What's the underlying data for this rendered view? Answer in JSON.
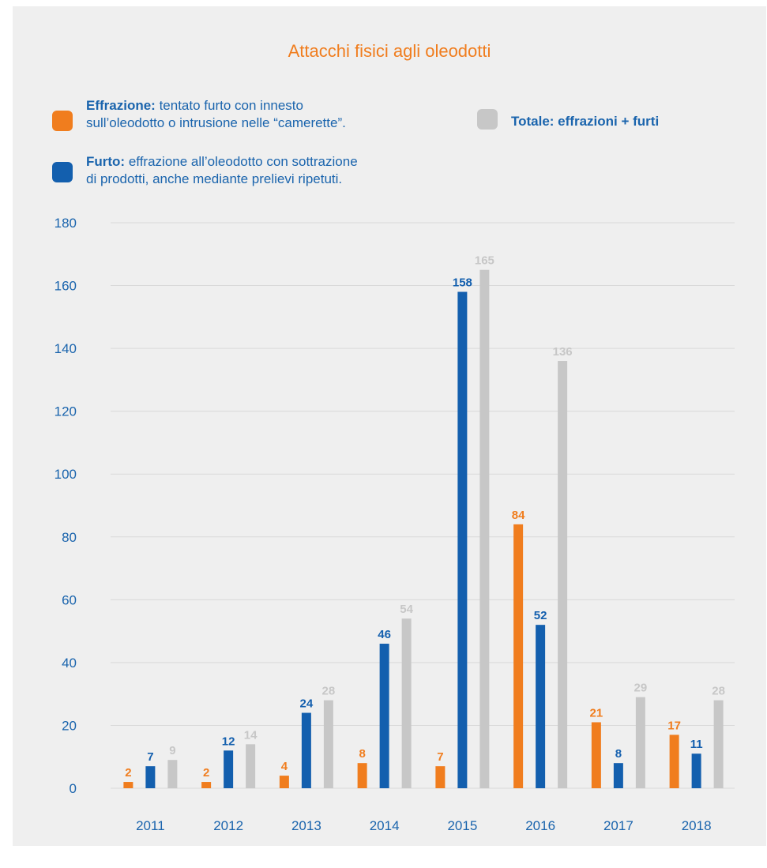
{
  "colors": {
    "effrazione": "#f07d1e",
    "furto": "#135fae",
    "totale": "#c7c7c7",
    "text_blue": "#1a64ad"
  },
  "legend": {
    "effrazione_term": "Effrazione:",
    "effrazione_line1": "tentato furto con innesto",
    "effrazione_line2": "sull’oleodotto o intrusione nelle “camerette”.",
    "furto_term": "Furto:",
    "furto_line1": "effrazione all’oleodotto con sottrazione",
    "furto_line2": "di prodotti, anche mediante prelievi ripetuti.",
    "totale_term": "Totale: effrazioni + furti"
  },
  "chart_data": {
    "type": "bar",
    "title": "Attacchi fisici agli oleodotti",
    "categories": [
      "2011",
      "2012",
      "2013",
      "2014",
      "2015",
      "2016",
      "2017",
      "2018"
    ],
    "series": [
      {
        "name": "Effrazione",
        "values": [
          2,
          2,
          4,
          8,
          7,
          84,
          21,
          17
        ]
      },
      {
        "name": "Furto",
        "values": [
          7,
          12,
          24,
          46,
          158,
          52,
          8,
          11
        ]
      },
      {
        "name": "Totale: effrazioni + furti",
        "values": [
          9,
          14,
          28,
          54,
          165,
          136,
          29,
          28
        ]
      }
    ],
    "yticks": [
      "0",
      "20",
      "40",
      "60",
      "80",
      "100",
      "120",
      "140",
      "160",
      "180"
    ],
    "ylim": [
      0,
      180
    ],
    "grid": true
  }
}
